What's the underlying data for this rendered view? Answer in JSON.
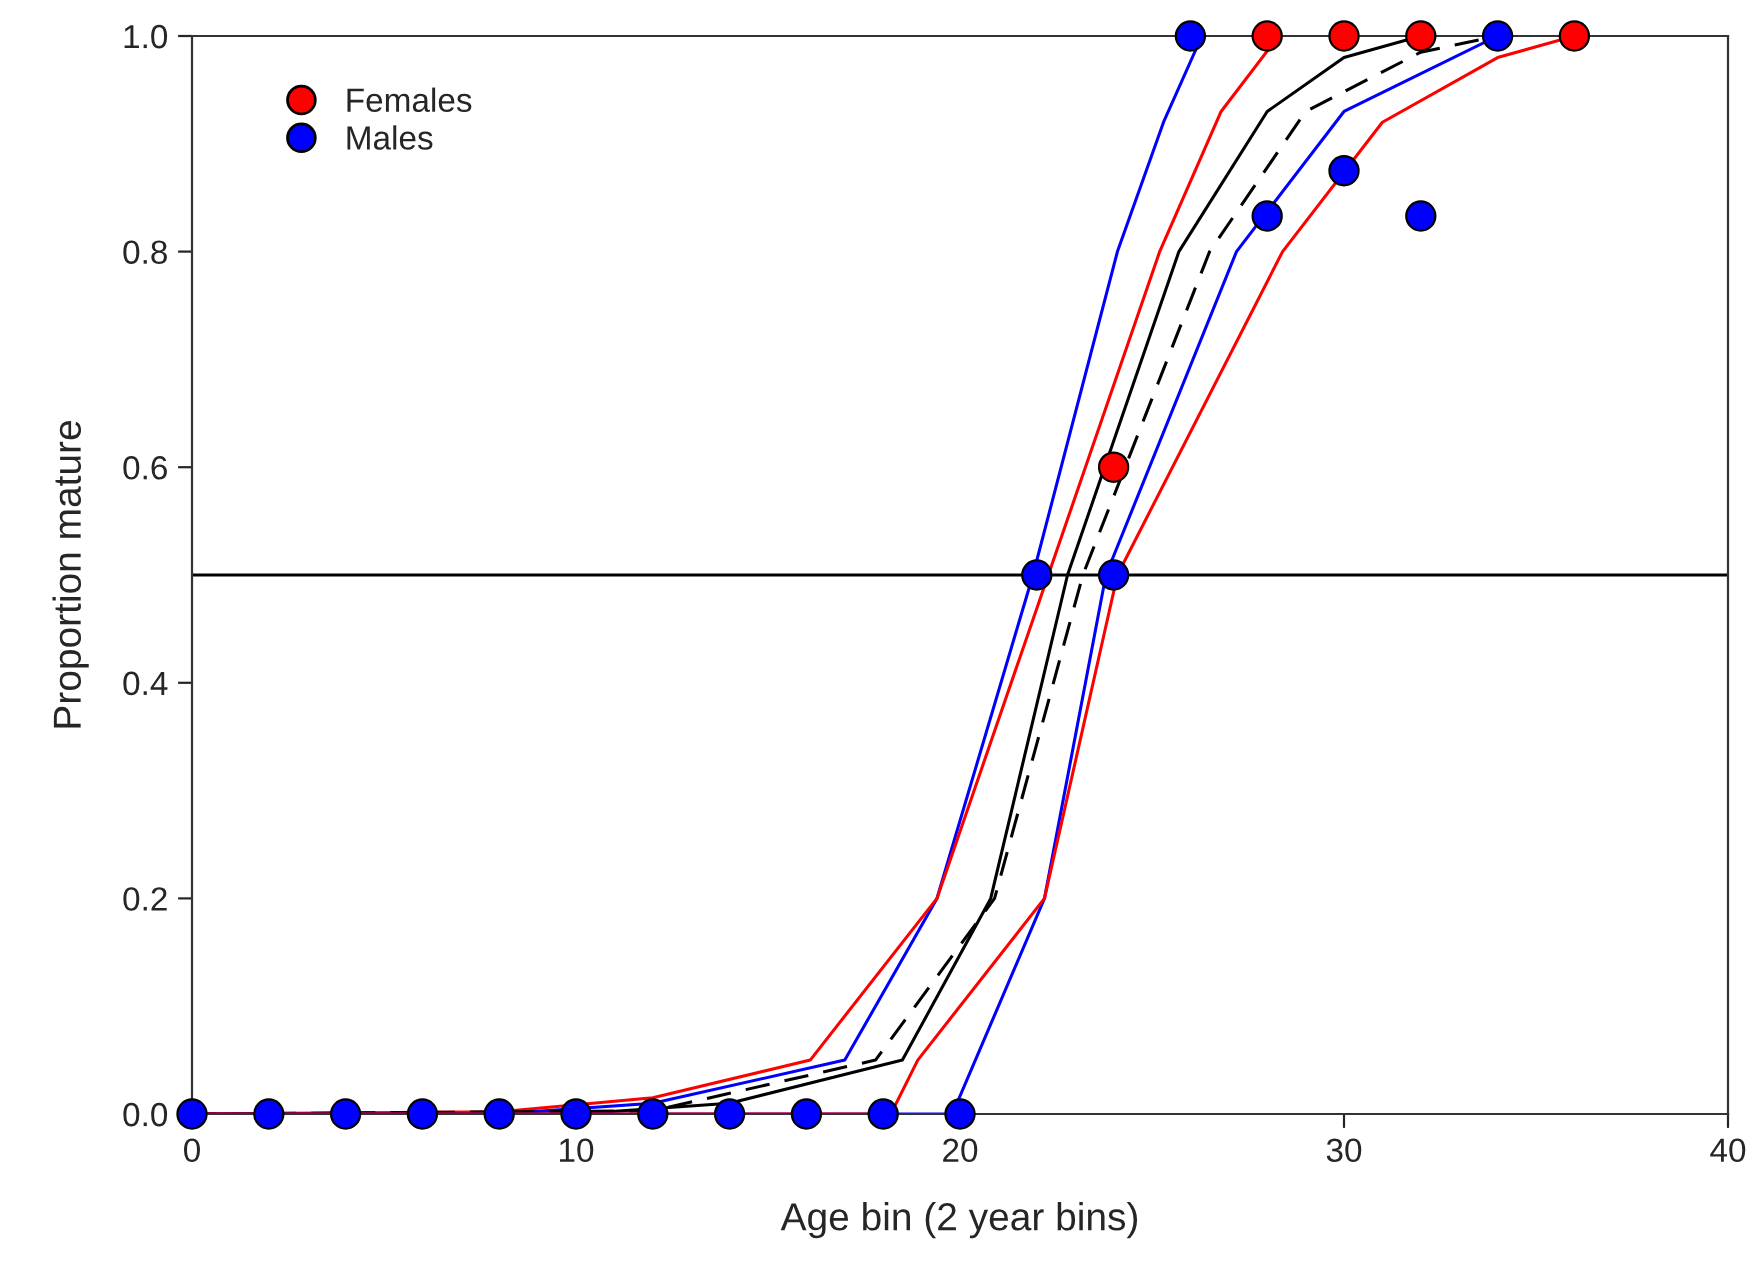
{
  "chart_data": {
    "type": "scatter",
    "xlabel": "Age bin (2 year bins)",
    "ylabel": "Proportion mature",
    "xlim": [
      0,
      40
    ],
    "ylim": [
      0,
      1
    ],
    "xticks": [
      0,
      10,
      20,
      30,
      40
    ],
    "yticks": [
      {
        "value": 0,
        "label": "0.0"
      },
      {
        "value": 0.2,
        "label": "0.2"
      },
      {
        "value": 0.4,
        "label": "0.4"
      },
      {
        "value": 0.6,
        "label": "0.6"
      },
      {
        "value": 0.8,
        "label": "0.8"
      },
      {
        "value": 1,
        "label": "1.0"
      }
    ],
    "grid": false,
    "legend": "top left",
    "ref_lines": [
      {
        "axis": "y",
        "value": 0.5,
        "color": "#000000"
      }
    ],
    "series": [
      {
        "type": "line",
        "color": "#0000ff",
        "x": [
          0,
          8,
          12,
          17,
          19.4,
          21.9,
          24.1,
          25.3,
          26.3
        ],
        "values": [
          0,
          0,
          0.01,
          0.05,
          0.2,
          0.5,
          0.8,
          0.92,
          1.0
        ]
      },
      {
        "type": "line",
        "color": "#ff0000",
        "x": [
          0,
          8,
          12,
          16.1,
          19.4,
          22.3,
          25.2,
          26.8,
          28.3
        ],
        "values": [
          0,
          0.002,
          0.015,
          0.05,
          0.2,
          0.5,
          0.8,
          0.93,
          1.0
        ]
      },
      {
        "type": "line",
        "color": "#000000",
        "x": [
          0,
          10,
          14,
          18.5,
          20.8,
          22.8,
          25.7,
          28,
          30,
          32
        ],
        "values": [
          0,
          0,
          0.01,
          0.05,
          0.2,
          0.5,
          0.8,
          0.93,
          0.98,
          1.0
        ]
      },
      {
        "type": "line",
        "color": "#000000",
        "line_style": "dashed",
        "x": [
          0,
          12,
          17.8,
          20.9,
          23.2,
          26.5,
          29,
          32,
          34
        ],
        "values": [
          0,
          0.003,
          0.05,
          0.2,
          0.5,
          0.8,
          0.93,
          0.985,
          1.0
        ]
      },
      {
        "type": "line",
        "color": "#0000ff",
        "x": [
          0,
          19.8,
          20.4,
          22.2,
          23.8,
          27.2,
          30,
          34
        ],
        "values": [
          0,
          0,
          0.05,
          0.2,
          0.5,
          0.8,
          0.93,
          1.0
        ]
      },
      {
        "type": "line",
        "color": "#ff0000",
        "x": [
          0,
          18.2,
          18.9,
          22.2,
          24.1,
          28.4,
          31,
          34,
          36
        ],
        "values": [
          0,
          0,
          0.05,
          0.2,
          0.5,
          0.8,
          0.92,
          0.98,
          1.0
        ]
      },
      {
        "name": "Females",
        "marker": "circle",
        "color": "#ff0000",
        "x": [
          24,
          28,
          30,
          32,
          36
        ],
        "values": [
          0.6,
          1.0,
          1.0,
          1.0,
          1.0
        ]
      },
      {
        "name": "Males",
        "marker": "circle",
        "color": "#0000ff",
        "x": [
          0,
          2,
          4,
          6,
          8,
          10,
          12,
          14,
          16,
          18,
          20,
          22,
          24,
          26,
          28,
          30,
          32,
          34
        ],
        "values": [
          0,
          0,
          0,
          0,
          0,
          0,
          0,
          0,
          0,
          0,
          0,
          0.5,
          0.5,
          1.0,
          0.833,
          0.875,
          0.833,
          1.0
        ]
      }
    ]
  }
}
